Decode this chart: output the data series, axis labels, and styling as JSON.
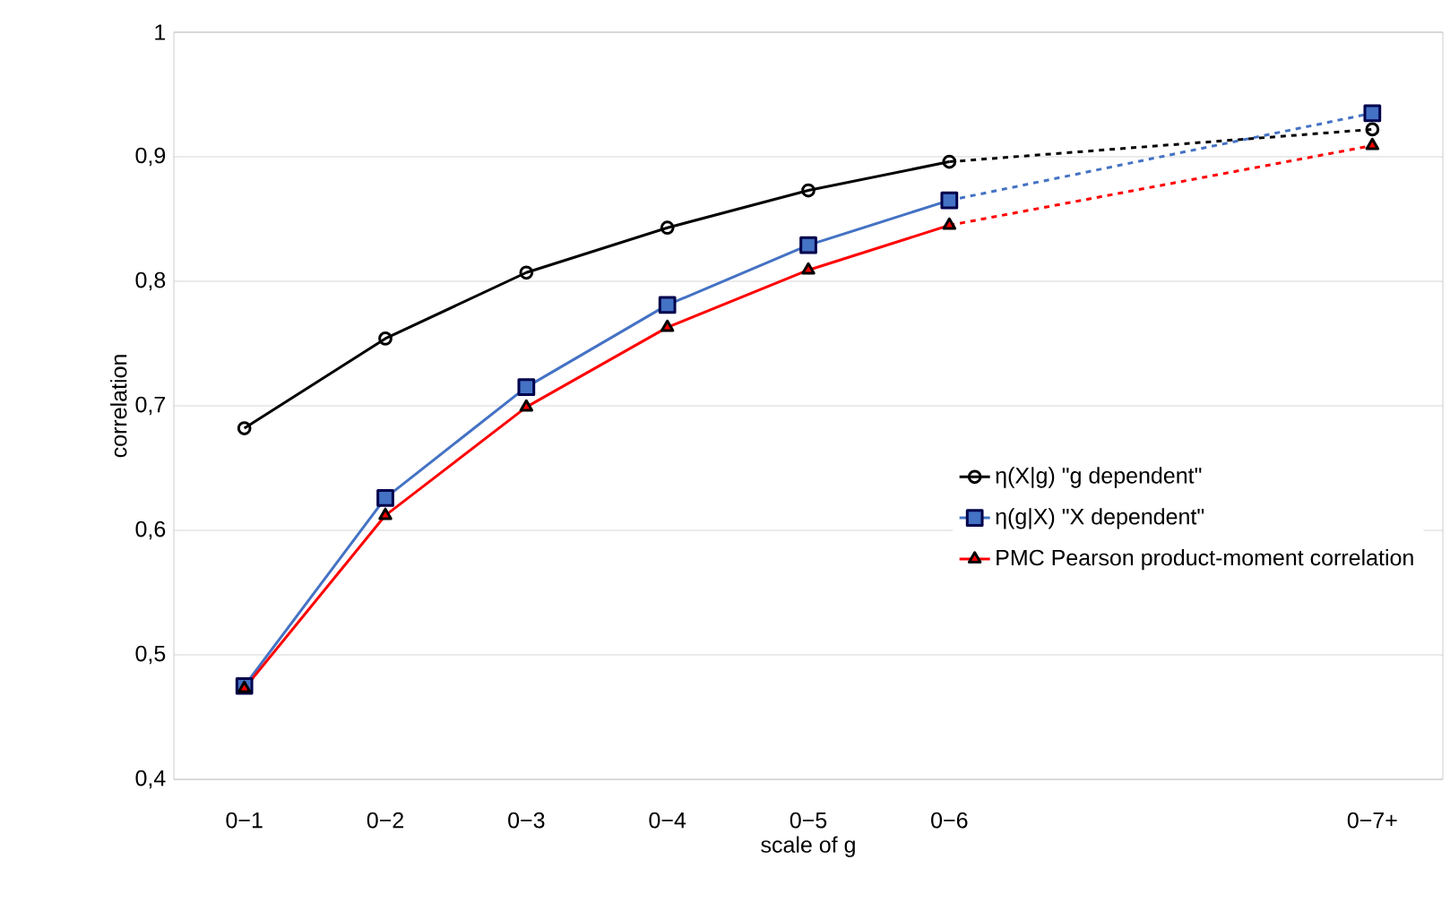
{
  "chart_data": {
    "type": "line",
    "xlabel": "scale of g",
    "ylabel": "correlation",
    "categories": [
      "0−1",
      "0−2",
      "0−3",
      "0−4",
      "0−5",
      "0−6",
      null,
      null,
      "0−7+"
    ],
    "ylim": [
      0.4,
      1.0
    ],
    "yticks": [
      {
        "value": 0.4,
        "label": "0,4"
      },
      {
        "value": 0.5,
        "label": "0,5"
      },
      {
        "value": 0.6,
        "label": "0,6"
      },
      {
        "value": 0.7,
        "label": "0,7"
      },
      {
        "value": 0.8,
        "label": "0,8"
      },
      {
        "value": 0.9,
        "label": "0,9"
      },
      {
        "value": 1.0,
        "label": "1"
      }
    ],
    "grid": "y",
    "legend": "right",
    "series": [
      {
        "name": "η(X|g) \"g dependent\"",
        "color": "#000000",
        "marker": "circle",
        "values": [
          0.682,
          0.754,
          0.807,
          0.843,
          0.873,
          0.896,
          null,
          null,
          0.922
        ]
      },
      {
        "name": "η(g|X)  \"X dependent\"",
        "color": "#4472c4",
        "marker": "square",
        "values": [
          0.475,
          0.626,
          0.715,
          0.781,
          0.829,
          0.865,
          null,
          null,
          0.935
        ]
      },
      {
        "name": "PMC Pearson product-moment correlation",
        "color": "#ff0000",
        "marker": "triangle",
        "values": [
          0.473,
          0.612,
          0.699,
          0.763,
          0.809,
          0.845,
          null,
          null,
          0.909
        ]
      }
    ]
  }
}
